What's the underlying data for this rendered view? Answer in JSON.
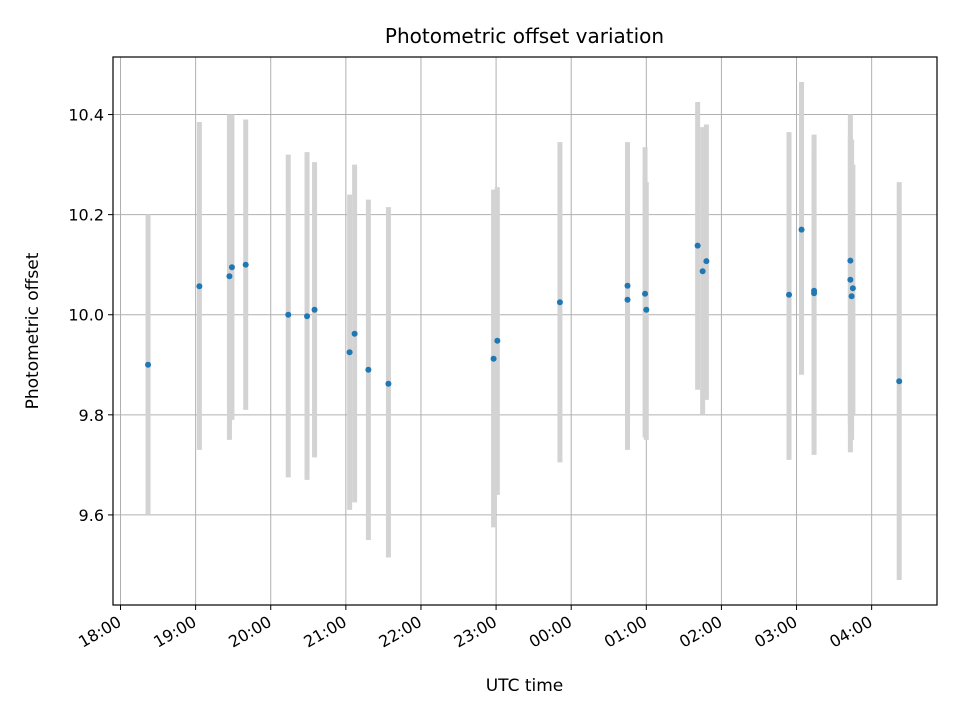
{
  "chart_data": {
    "type": "scatter",
    "title": "Photometric offset variation",
    "xlabel": "UTC time",
    "ylabel": "Photometric offset",
    "x_ticks": [
      "18:00",
      "19:00",
      "20:00",
      "21:00",
      "22:00",
      "23:00",
      "00:00",
      "01:00",
      "02:00",
      "03:00",
      "04:00"
    ],
    "y_ticks": [
      "9.6",
      "9.8",
      "10.0",
      "10.2",
      "10.4"
    ],
    "y_tick_values": [
      9.6,
      9.8,
      10.0,
      10.2,
      10.4
    ],
    "xlim_hours": [
      17.9,
      28.87
    ],
    "ylim": [
      9.42,
      10.515
    ],
    "grid": true,
    "point_color": "#1f77b4",
    "errorbar_color": "#d3d3d3",
    "points": [
      {
        "t": "18:22",
        "y": 9.9,
        "lo": 9.6,
        "hi": 10.2
      },
      {
        "t": "19:03",
        "y": 10.057,
        "lo": 9.73,
        "hi": 10.385
      },
      {
        "t": "19:27",
        "y": 10.077,
        "lo": 9.75,
        "hi": 10.4
      },
      {
        "t": "19:29",
        "y": 10.095,
        "lo": 9.79,
        "hi": 10.4
      },
      {
        "t": "19:40",
        "y": 10.1,
        "lo": 9.81,
        "hi": 10.39
      },
      {
        "t": "20:14",
        "y": 10.0,
        "lo": 9.675,
        "hi": 10.32
      },
      {
        "t": "20:29",
        "y": 9.997,
        "lo": 9.67,
        "hi": 10.325
      },
      {
        "t": "20:35",
        "y": 10.01,
        "lo": 9.715,
        "hi": 10.305
      },
      {
        "t": "21:03",
        "y": 9.925,
        "lo": 9.61,
        "hi": 10.24
      },
      {
        "t": "21:07",
        "y": 9.962,
        "lo": 9.625,
        "hi": 10.3
      },
      {
        "t": "21:18",
        "y": 9.89,
        "lo": 9.55,
        "hi": 10.23
      },
      {
        "t": "21:34",
        "y": 9.862,
        "lo": 9.515,
        "hi": 10.215
      },
      {
        "t": "22:58",
        "y": 9.912,
        "lo": 9.575,
        "hi": 10.25
      },
      {
        "t": "23:01",
        "y": 9.948,
        "lo": 9.64,
        "hi": 10.255
      },
      {
        "t": "23:51",
        "y": 10.025,
        "lo": 9.705,
        "hi": 10.345
      },
      {
        "t": "00:45",
        "y": 10.058,
        "lo": 9.73,
        "hi": 10.345
      },
      {
        "t": "00:45",
        "y": 10.03,
        "lo": 9.77,
        "hi": 10.3
      },
      {
        "t": "00:59",
        "y": 10.042,
        "lo": 9.755,
        "hi": 10.335
      },
      {
        "t": "01:00",
        "y": 10.01,
        "lo": 9.75,
        "hi": 10.265
      },
      {
        "t": "01:41",
        "y": 10.138,
        "lo": 9.85,
        "hi": 10.425
      },
      {
        "t": "01:45",
        "y": 10.087,
        "lo": 9.8,
        "hi": 10.375
      },
      {
        "t": "01:48",
        "y": 10.107,
        "lo": 9.83,
        "hi": 10.38
      },
      {
        "t": "02:54",
        "y": 10.04,
        "lo": 9.71,
        "hi": 10.365
      },
      {
        "t": "03:04",
        "y": 10.17,
        "lo": 9.88,
        "hi": 10.465
      },
      {
        "t": "03:14",
        "y": 10.048,
        "lo": 9.72,
        "hi": 10.36
      },
      {
        "t": "03:14",
        "y": 10.043,
        "lo": 9.76,
        "hi": 10.32
      },
      {
        "t": "03:43",
        "y": 10.108,
        "lo": 9.725,
        "hi": 10.4
      },
      {
        "t": "03:43",
        "y": 10.07,
        "lo": 9.78,
        "hi": 10.36
      },
      {
        "t": "03:44",
        "y": 10.037,
        "lo": 9.75,
        "hi": 10.35
      },
      {
        "t": "03:45",
        "y": 10.053,
        "lo": 9.8,
        "hi": 10.3
      },
      {
        "t": "04:22",
        "y": 9.867,
        "lo": 9.47,
        "hi": 10.265
      }
    ]
  }
}
